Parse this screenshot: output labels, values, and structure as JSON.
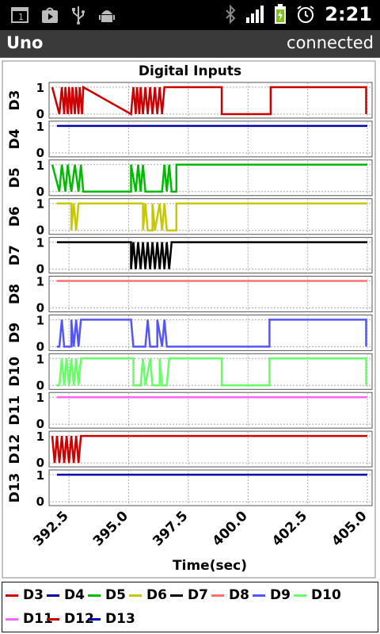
{
  "status_bar": {
    "time": "2:21",
    "left_icons": [
      "notification-icon",
      "play-store-icon",
      "usb-icon",
      "android-debug-icon"
    ],
    "right_icons": [
      "bluetooth-icon",
      "signal-icon",
      "battery-charging-icon",
      "alarm-icon"
    ]
  },
  "app": {
    "title": "Uno",
    "connection_status": "connected"
  },
  "chart_data": {
    "type": "line",
    "title": "Digital Inputs",
    "xlabel": "Time(sec)",
    "x_ticks": [
      "392.5",
      "395.0",
      "397.5",
      "400.0",
      "402.5",
      "405.0"
    ],
    "xlim": [
      391.8,
      405.0
    ],
    "ylim": [
      0,
      1
    ],
    "y_ticks": [
      "0",
      "1"
    ],
    "grid": true,
    "legend": "bottom",
    "series": [
      {
        "name": "D3",
        "color": "#cc0000",
        "segments": [
          [
            391.8,
            1
          ],
          [
            392.1,
            0
          ],
          [
            392.2,
            1
          ],
          [
            392.3,
            0
          ],
          [
            392.35,
            1
          ],
          [
            392.45,
            0
          ],
          [
            392.5,
            1
          ],
          [
            392.6,
            0
          ],
          [
            392.65,
            1
          ],
          [
            392.75,
            0
          ],
          [
            392.8,
            1
          ],
          [
            392.9,
            0
          ],
          [
            392.95,
            1
          ],
          [
            393.05,
            0
          ],
          [
            393.1,
            1
          ],
          [
            395.1,
            0
          ],
          [
            395.2,
            1
          ],
          [
            395.3,
            0
          ],
          [
            395.35,
            1
          ],
          [
            395.45,
            0
          ],
          [
            395.5,
            1
          ],
          [
            395.6,
            0
          ],
          [
            395.7,
            1
          ],
          [
            395.8,
            0
          ],
          [
            395.9,
            1
          ],
          [
            396.0,
            0
          ],
          [
            396.1,
            1
          ],
          [
            396.2,
            0
          ],
          [
            396.3,
            1
          ],
          [
            396.4,
            0
          ],
          [
            396.5,
            1
          ],
          [
            396.7,
            1
          ],
          [
            398.9,
            1
          ],
          [
            398.9,
            0
          ],
          [
            400.95,
            0
          ],
          [
            400.95,
            1
          ],
          [
            404.95,
            1
          ],
          [
            404.95,
            0
          ]
        ]
      },
      {
        "name": "D4",
        "color": "#0000aa",
        "segments": [
          [
            392.0,
            1
          ],
          [
            405.0,
            1
          ]
        ]
      },
      {
        "name": "D5",
        "color": "#00bb00",
        "segments": [
          [
            391.8,
            1
          ],
          [
            392.1,
            0
          ],
          [
            392.2,
            1
          ],
          [
            392.35,
            0
          ],
          [
            392.45,
            1
          ],
          [
            392.6,
            0
          ],
          [
            392.75,
            1
          ],
          [
            392.9,
            0
          ],
          [
            393.0,
            1
          ],
          [
            393.1,
            0
          ],
          [
            395.1,
            0
          ],
          [
            395.1,
            1
          ],
          [
            395.3,
            0
          ],
          [
            395.4,
            1
          ],
          [
            395.5,
            0
          ],
          [
            395.6,
            1
          ],
          [
            395.7,
            0
          ],
          [
            396.4,
            0
          ],
          [
            396.5,
            1
          ],
          [
            396.6,
            0
          ],
          [
            396.7,
            1
          ],
          [
            396.8,
            0
          ],
          [
            397.0,
            0
          ],
          [
            397.0,
            1
          ],
          [
            405.0,
            1
          ]
        ]
      },
      {
        "name": "D6",
        "color": "#c8c800",
        "segments": [
          [
            392.0,
            1
          ],
          [
            392.6,
            1
          ],
          [
            392.6,
            0
          ],
          [
            392.7,
            1
          ],
          [
            392.8,
            0
          ],
          [
            392.9,
            1
          ],
          [
            395.6,
            1
          ],
          [
            395.6,
            0
          ],
          [
            395.7,
            1
          ],
          [
            395.8,
            0
          ],
          [
            396.0,
            0
          ],
          [
            396.0,
            1
          ],
          [
            396.1,
            0
          ],
          [
            396.3,
            1
          ],
          [
            396.4,
            0
          ],
          [
            396.5,
            1
          ],
          [
            396.6,
            0
          ],
          [
            397.0,
            0
          ],
          [
            397.0,
            1
          ],
          [
            405.0,
            1
          ]
        ]
      },
      {
        "name": "D7",
        "color": "#000000",
        "segments": [
          [
            392.0,
            1
          ],
          [
            395.1,
            1
          ],
          [
            395.1,
            0
          ],
          [
            395.2,
            1
          ],
          [
            395.3,
            0
          ],
          [
            395.4,
            1
          ],
          [
            395.5,
            0
          ],
          [
            395.6,
            1
          ],
          [
            395.7,
            0
          ],
          [
            395.8,
            1
          ],
          [
            395.9,
            0
          ],
          [
            396.0,
            1
          ],
          [
            396.1,
            0
          ],
          [
            396.2,
            1
          ],
          [
            396.3,
            0
          ],
          [
            396.4,
            1
          ],
          [
            396.5,
            0
          ],
          [
            396.6,
            1
          ],
          [
            396.7,
            0
          ],
          [
            396.8,
            1
          ],
          [
            405.0,
            1
          ]
        ]
      },
      {
        "name": "D8",
        "color": "#ff7070",
        "segments": [
          [
            392.0,
            1
          ],
          [
            405.0,
            1
          ]
        ]
      },
      {
        "name": "D9",
        "color": "#5555ff",
        "segments": [
          [
            392.0,
            0
          ],
          [
            392.1,
            0
          ],
          [
            392.2,
            1
          ],
          [
            392.3,
            0
          ],
          [
            392.6,
            0
          ],
          [
            392.6,
            1
          ],
          [
            392.7,
            0
          ],
          [
            392.8,
            1
          ],
          [
            392.9,
            0
          ],
          [
            393.0,
            1
          ],
          [
            395.1,
            1
          ],
          [
            395.2,
            0
          ],
          [
            395.7,
            0
          ],
          [
            395.8,
            1
          ],
          [
            395.9,
            0
          ],
          [
            396.2,
            0
          ],
          [
            396.2,
            1
          ],
          [
            396.4,
            0
          ],
          [
            396.5,
            1
          ],
          [
            396.6,
            0
          ],
          [
            400.9,
            0
          ],
          [
            400.9,
            1
          ],
          [
            404.95,
            1
          ],
          [
            404.95,
            0
          ]
        ]
      },
      {
        "name": "D10",
        "color": "#66ff66",
        "segments": [
          [
            392.0,
            0
          ],
          [
            392.1,
            0
          ],
          [
            392.2,
            1
          ],
          [
            392.3,
            0
          ],
          [
            392.4,
            1
          ],
          [
            392.5,
            0
          ],
          [
            392.6,
            1
          ],
          [
            392.7,
            0
          ],
          [
            392.8,
            1
          ],
          [
            392.9,
            0
          ],
          [
            393.0,
            1
          ],
          [
            395.2,
            1
          ],
          [
            395.2,
            0
          ],
          [
            395.5,
            0
          ],
          [
            395.6,
            1
          ],
          [
            395.7,
            0
          ],
          [
            395.9,
            1
          ],
          [
            396.0,
            0
          ],
          [
            396.3,
            0
          ],
          [
            396.3,
            1
          ],
          [
            396.4,
            0
          ],
          [
            396.6,
            0
          ],
          [
            396.7,
            1
          ],
          [
            398.9,
            1
          ],
          [
            398.9,
            0
          ],
          [
            400.9,
            0
          ],
          [
            400.9,
            1
          ],
          [
            404.95,
            1
          ],
          [
            404.95,
            0
          ]
        ]
      },
      {
        "name": "D11",
        "color": "#ff66ff",
        "segments": [
          [
            392.0,
            1
          ],
          [
            405.0,
            1
          ]
        ]
      },
      {
        "name": "D12",
        "color": "#cc0000",
        "segments": [
          [
            391.8,
            1
          ],
          [
            391.9,
            0
          ],
          [
            392.0,
            1
          ],
          [
            392.1,
            0
          ],
          [
            392.2,
            1
          ],
          [
            392.3,
            0
          ],
          [
            392.4,
            1
          ],
          [
            392.5,
            0
          ],
          [
            392.6,
            1
          ],
          [
            392.7,
            0
          ],
          [
            392.8,
            1
          ],
          [
            392.9,
            0
          ],
          [
            393.0,
            1
          ],
          [
            405.0,
            1
          ]
        ]
      },
      {
        "name": "D13",
        "color": "#0000aa",
        "segments": [
          [
            392.0,
            1
          ],
          [
            405.0,
            1
          ]
        ]
      }
    ]
  }
}
